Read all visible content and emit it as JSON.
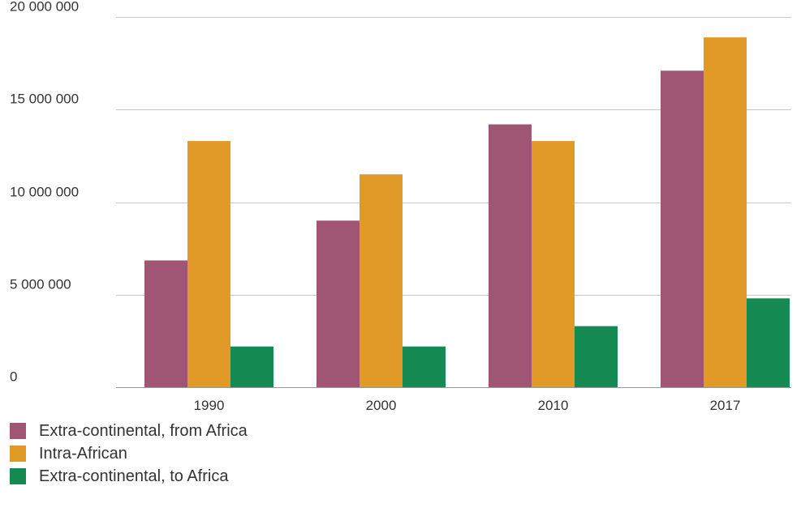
{
  "chart_data": {
    "type": "bar",
    "categories": [
      "1990",
      "2000",
      "2010",
      "2017"
    ],
    "series": [
      {
        "name": "Extra-continental, from Africa",
        "color": "#a05575",
        "values": [
          6850000,
          9000000,
          14200000,
          17100000
        ]
      },
      {
        "name": "Intra-African",
        "color": "#e19a28",
        "values": [
          13300000,
          11500000,
          13300000,
          18900000
        ]
      },
      {
        "name": "Extra-continental, to Africa",
        "color": "#168a53",
        "values": [
          2200000,
          2200000,
          3300000,
          4800000
        ]
      }
    ],
    "ylim": [
      0,
      20000000
    ],
    "y_ticks": [
      {
        "value": 0,
        "label": "0"
      },
      {
        "value": 5000000,
        "label": "5 000 000"
      },
      {
        "value": 10000000,
        "label": "10 000 000"
      },
      {
        "value": 15000000,
        "label": "15 000 000"
      },
      {
        "value": 20000000,
        "label": "20 000 000"
      }
    ],
    "grid": true,
    "legend_position": "bottom-left",
    "title": "",
    "xlabel": "",
    "ylabel": ""
  }
}
